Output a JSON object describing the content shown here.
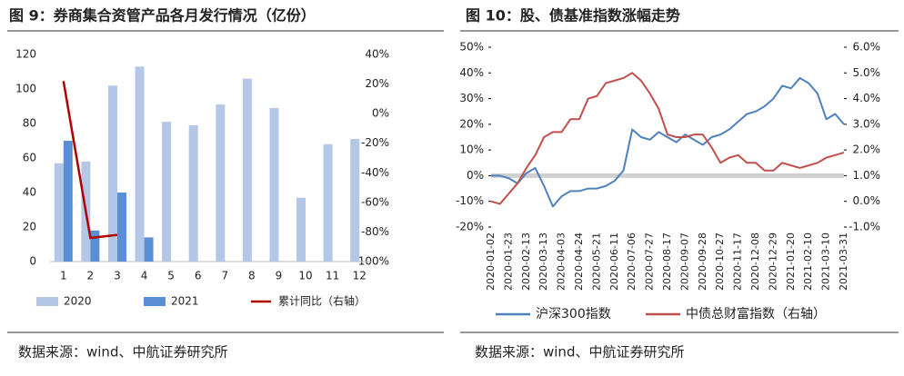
{
  "chart_data": [
    {
      "type": "bar",
      "title": "图 9：券商集合资管产品各月发行情况（亿份）",
      "source": "数据来源：wind、中航证券研究所",
      "categories": [
        "1",
        "2",
        "3",
        "4",
        "5",
        "6",
        "7",
        "8",
        "9",
        "10",
        "11",
        "12"
      ],
      "series": [
        {
          "name": "2020",
          "color": "#b4c7e7",
          "values": [
            57,
            58,
            102,
            113,
            81,
            79,
            91,
            106,
            89,
            37,
            68,
            71
          ]
        },
        {
          "name": "2021",
          "color": "#5a8fd6",
          "values": [
            70,
            18,
            40,
            14,
            null,
            null,
            null,
            null,
            null,
            null,
            null,
            null
          ]
        },
        {
          "name": "累计同比（右轴）",
          "type": "line",
          "axis": "y2",
          "color": "#b00000",
          "values": [
            22,
            -84,
            -82,
            null,
            null,
            null,
            null,
            null,
            null,
            null,
            null,
            null
          ]
        }
      ],
      "ylim": [
        0,
        120
      ],
      "yticks": [
        0,
        20,
        40,
        60,
        80,
        100,
        120
      ],
      "y2lim": [
        -100,
        40
      ],
      "y2ticks": [
        {
          "value": -100,
          "label": "-100%"
        },
        {
          "value": -80,
          "label": "-80%"
        },
        {
          "value": -60,
          "label": "-60%"
        },
        {
          "value": -40,
          "label": "-40%"
        },
        {
          "value": -20,
          "label": "-20%"
        },
        {
          "value": 0,
          "label": "0%"
        },
        {
          "value": 20,
          "label": "20%"
        },
        {
          "value": 40,
          "label": "40%"
        }
      ]
    },
    {
      "type": "line",
      "title": "图 10：股、债基准指数涨幅走势",
      "source": "数据来源：wind、中航证券研究所",
      "categories": [
        "2020-01-02",
        null,
        "2020-01-23",
        null,
        "2020-02-13",
        null,
        "2020-03-13",
        null,
        "2020-04-03",
        null,
        "2020-04-24",
        null,
        "2020-05-21",
        null,
        "2020-06-11",
        null,
        "2020-07-06",
        null,
        "2020-07-27",
        null,
        "2020-08-17",
        null,
        "2020-09-07",
        null,
        "2020-09-28",
        null,
        "2020-10-27",
        null,
        "2020-11-17",
        null,
        "2020-12-08",
        null,
        "2020-12-29",
        null,
        "2021-01-20",
        null,
        "2021-02-10",
        null,
        "2021-03-10",
        null,
        "2021-03-31"
      ],
      "series": [
        {
          "name": "沪深300指数",
          "color": "#4f81bd",
          "values": [
            0,
            0,
            -1,
            -3,
            1,
            3,
            -4,
            -12,
            -8,
            -6,
            -6,
            -5,
            -5,
            -4,
            -2,
            2,
            18,
            15,
            14,
            17,
            15,
            13,
            16,
            14,
            12,
            15,
            16,
            18,
            21,
            24,
            25,
            27,
            30,
            35,
            34,
            38,
            36,
            32,
            22,
            24,
            20
          ]
        },
        {
          "name": "中债总财富指数（右轴）",
          "axis": "y2",
          "color": "#c0504d",
          "values": [
            0.0,
            -0.1,
            0.3,
            0.7,
            1.3,
            1.8,
            2.5,
            2.7,
            2.7,
            3.2,
            3.2,
            4.0,
            4.1,
            4.6,
            4.7,
            4.8,
            5.0,
            4.7,
            4.2,
            3.6,
            2.6,
            2.5,
            2.5,
            2.6,
            2.6,
            2.1,
            1.5,
            1.7,
            1.8,
            1.5,
            1.5,
            1.2,
            1.2,
            1.5,
            1.4,
            1.3,
            1.4,
            1.5,
            1.7,
            1.8,
            1.9
          ]
        }
      ],
      "ylim": [
        -20,
        50
      ],
      "yticks": [
        {
          "value": -20,
          "label": "-20%"
        },
        {
          "value": -10,
          "label": "-10%"
        },
        {
          "value": 0,
          "label": "0%"
        },
        {
          "value": 10,
          "label": "10%"
        },
        {
          "value": 20,
          "label": "20%"
        },
        {
          "value": 30,
          "label": "30%"
        },
        {
          "value": 40,
          "label": "40%"
        },
        {
          "value": 50,
          "label": "50%"
        }
      ],
      "y2lim": [
        -1,
        6
      ],
      "y2ticks": [
        {
          "value": -1,
          "label": "-1.0%"
        },
        {
          "value": 0,
          "label": "0.0%"
        },
        {
          "value": 1,
          "label": "1.0%"
        },
        {
          "value": 2,
          "label": "2.0%"
        },
        {
          "value": 3,
          "label": "3.0%"
        },
        {
          "value": 4,
          "label": "4.0%"
        },
        {
          "value": 5,
          "label": "5.0%"
        },
        {
          "value": 6,
          "label": "6.0%"
        }
      ]
    }
  ]
}
